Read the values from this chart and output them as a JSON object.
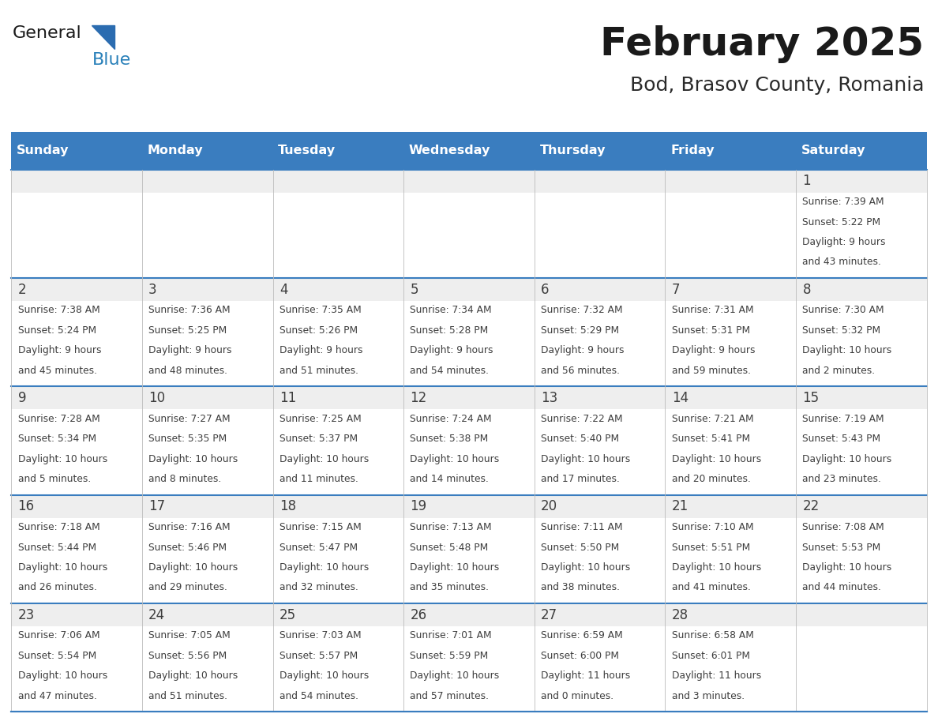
{
  "title": "February 2025",
  "subtitle": "Bod, Brasov County, Romania",
  "header_bg_color": "#3a7dbf",
  "header_text_color": "#ffffff",
  "border_color": "#3a7dbf",
  "day_number_color": "#3a7dbf",
  "text_color": "#3d3d3d",
  "cell_top_bg": "#eeeeee",
  "cell_body_bg": "#ffffff",
  "logo_triangle_color": "#2b6cb0",
  "logo_blue_color": "#2980b9",
  "day_names": [
    "Sunday",
    "Monday",
    "Tuesday",
    "Wednesday",
    "Thursday",
    "Friday",
    "Saturday"
  ],
  "days": [
    {
      "day": 1,
      "col": 6,
      "row": 0,
      "sunrise": "7:39 AM",
      "sunset": "5:22 PM",
      "daylight": "9 hours and 43 minutes."
    },
    {
      "day": 2,
      "col": 0,
      "row": 1,
      "sunrise": "7:38 AM",
      "sunset": "5:24 PM",
      "daylight": "9 hours and 45 minutes."
    },
    {
      "day": 3,
      "col": 1,
      "row": 1,
      "sunrise": "7:36 AM",
      "sunset": "5:25 PM",
      "daylight": "9 hours and 48 minutes."
    },
    {
      "day": 4,
      "col": 2,
      "row": 1,
      "sunrise": "7:35 AM",
      "sunset": "5:26 PM",
      "daylight": "9 hours and 51 minutes."
    },
    {
      "day": 5,
      "col": 3,
      "row": 1,
      "sunrise": "7:34 AM",
      "sunset": "5:28 PM",
      "daylight": "9 hours and 54 minutes."
    },
    {
      "day": 6,
      "col": 4,
      "row": 1,
      "sunrise": "7:32 AM",
      "sunset": "5:29 PM",
      "daylight": "9 hours and 56 minutes."
    },
    {
      "day": 7,
      "col": 5,
      "row": 1,
      "sunrise": "7:31 AM",
      "sunset": "5:31 PM",
      "daylight": "9 hours and 59 minutes."
    },
    {
      "day": 8,
      "col": 6,
      "row": 1,
      "sunrise": "7:30 AM",
      "sunset": "5:32 PM",
      "daylight": "10 hours and 2 minutes."
    },
    {
      "day": 9,
      "col": 0,
      "row": 2,
      "sunrise": "7:28 AM",
      "sunset": "5:34 PM",
      "daylight": "10 hours and 5 minutes."
    },
    {
      "day": 10,
      "col": 1,
      "row": 2,
      "sunrise": "7:27 AM",
      "sunset": "5:35 PM",
      "daylight": "10 hours and 8 minutes."
    },
    {
      "day": 11,
      "col": 2,
      "row": 2,
      "sunrise": "7:25 AM",
      "sunset": "5:37 PM",
      "daylight": "10 hours and 11 minutes."
    },
    {
      "day": 12,
      "col": 3,
      "row": 2,
      "sunrise": "7:24 AM",
      "sunset": "5:38 PM",
      "daylight": "10 hours and 14 minutes."
    },
    {
      "day": 13,
      "col": 4,
      "row": 2,
      "sunrise": "7:22 AM",
      "sunset": "5:40 PM",
      "daylight": "10 hours and 17 minutes."
    },
    {
      "day": 14,
      "col": 5,
      "row": 2,
      "sunrise": "7:21 AM",
      "sunset": "5:41 PM",
      "daylight": "10 hours and 20 minutes."
    },
    {
      "day": 15,
      "col": 6,
      "row": 2,
      "sunrise": "7:19 AM",
      "sunset": "5:43 PM",
      "daylight": "10 hours and 23 minutes."
    },
    {
      "day": 16,
      "col": 0,
      "row": 3,
      "sunrise": "7:18 AM",
      "sunset": "5:44 PM",
      "daylight": "10 hours and 26 minutes."
    },
    {
      "day": 17,
      "col": 1,
      "row": 3,
      "sunrise": "7:16 AM",
      "sunset": "5:46 PM",
      "daylight": "10 hours and 29 minutes."
    },
    {
      "day": 18,
      "col": 2,
      "row": 3,
      "sunrise": "7:15 AM",
      "sunset": "5:47 PM",
      "daylight": "10 hours and 32 minutes."
    },
    {
      "day": 19,
      "col": 3,
      "row": 3,
      "sunrise": "7:13 AM",
      "sunset": "5:48 PM",
      "daylight": "10 hours and 35 minutes."
    },
    {
      "day": 20,
      "col": 4,
      "row": 3,
      "sunrise": "7:11 AM",
      "sunset": "5:50 PM",
      "daylight": "10 hours and 38 minutes."
    },
    {
      "day": 21,
      "col": 5,
      "row": 3,
      "sunrise": "7:10 AM",
      "sunset": "5:51 PM",
      "daylight": "10 hours and 41 minutes."
    },
    {
      "day": 22,
      "col": 6,
      "row": 3,
      "sunrise": "7:08 AM",
      "sunset": "5:53 PM",
      "daylight": "10 hours and 44 minutes."
    },
    {
      "day": 23,
      "col": 0,
      "row": 4,
      "sunrise": "7:06 AM",
      "sunset": "5:54 PM",
      "daylight": "10 hours and 47 minutes."
    },
    {
      "day": 24,
      "col": 1,
      "row": 4,
      "sunrise": "7:05 AM",
      "sunset": "5:56 PM",
      "daylight": "10 hours and 51 minutes."
    },
    {
      "day": 25,
      "col": 2,
      "row": 4,
      "sunrise": "7:03 AM",
      "sunset": "5:57 PM",
      "daylight": "10 hours and 54 minutes."
    },
    {
      "day": 26,
      "col": 3,
      "row": 4,
      "sunrise": "7:01 AM",
      "sunset": "5:59 PM",
      "daylight": "10 hours and 57 minutes."
    },
    {
      "day": 27,
      "col": 4,
      "row": 4,
      "sunrise": "6:59 AM",
      "sunset": "6:00 PM",
      "daylight": "11 hours and 0 minutes."
    },
    {
      "day": 28,
      "col": 5,
      "row": 4,
      "sunrise": "6:58 AM",
      "sunset": "6:01 PM",
      "daylight": "11 hours and 3 minutes."
    }
  ],
  "num_rows": 5,
  "num_cols": 7
}
